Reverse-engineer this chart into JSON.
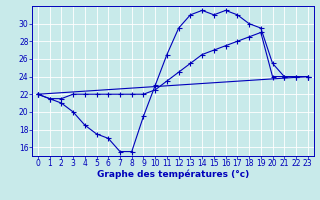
{
  "title": "Graphe des températures (°c)",
  "bg_color": "#c8eaea",
  "line_color": "#0000bb",
  "grid_color": "#ffffff",
  "xlim": [
    -0.5,
    23.5
  ],
  "ylim": [
    15.0,
    32.0
  ],
  "yticks": [
    16,
    18,
    20,
    22,
    24,
    26,
    28,
    30
  ],
  "xticks": [
    0,
    1,
    2,
    3,
    4,
    5,
    6,
    7,
    8,
    9,
    10,
    11,
    12,
    13,
    14,
    15,
    16,
    17,
    18,
    19,
    20,
    21,
    22,
    23
  ],
  "line1_x": [
    0,
    1,
    2,
    3,
    4,
    5,
    6,
    7,
    8,
    9,
    10,
    11,
    12,
    13,
    14,
    15,
    16,
    17,
    18,
    19,
    20,
    21,
    22,
    23
  ],
  "line1_y": [
    22,
    21.5,
    21,
    20,
    18.5,
    17.5,
    17,
    15.5,
    15.5,
    19.5,
    23,
    26.5,
    29.5,
    31,
    31.5,
    31,
    31.5,
    31,
    30,
    29.5,
    25.5,
    24,
    24,
    24
  ],
  "line2_x": [
    0,
    1,
    2,
    3,
    4,
    5,
    6,
    7,
    8,
    9,
    10,
    11,
    12,
    13,
    14,
    15,
    16,
    17,
    18,
    19,
    20,
    21,
    22,
    23
  ],
  "line2_y": [
    22,
    21.5,
    21.5,
    22,
    22,
    22,
    22,
    22,
    22,
    22,
    22.5,
    23.5,
    24.5,
    25.5,
    26.5,
    27,
    27.5,
    28,
    28.5,
    29,
    24,
    24,
    24,
    24
  ],
  "line3_x": [
    0,
    23
  ],
  "line3_y": [
    22,
    24
  ],
  "marker_size": 2.0,
  "line_width": 0.8,
  "tick_fontsize": 5.5,
  "xlabel_fontsize": 6.5
}
